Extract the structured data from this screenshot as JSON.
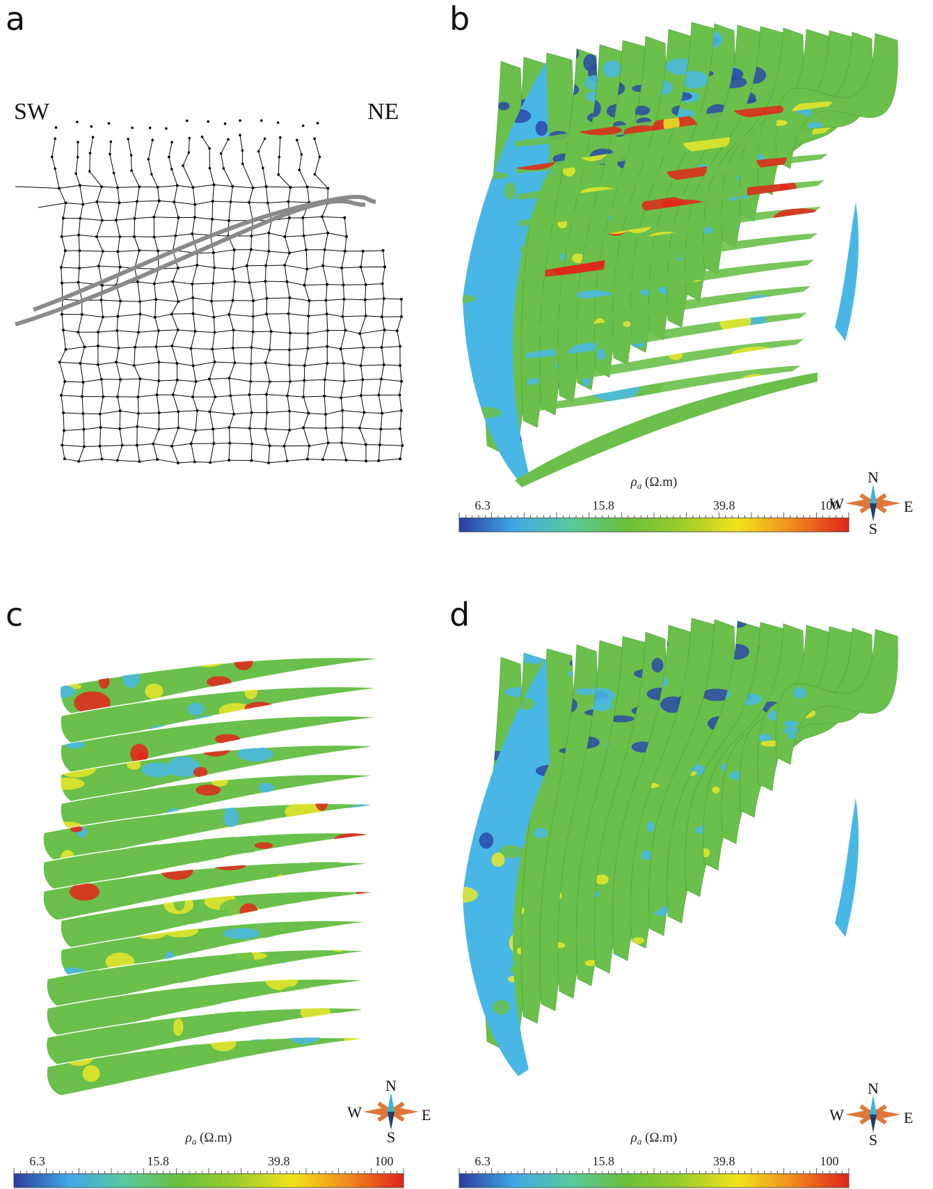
{
  "panels": {
    "a": {
      "letter": "a",
      "left_label": "SW",
      "right_label": "NE"
    },
    "b": {
      "letter": "b"
    },
    "c": {
      "letter": "c"
    },
    "d": {
      "letter": "d"
    }
  },
  "colorbar": {
    "title_symbol": "ρ",
    "title_sub": "a",
    "title_unit": " (Ω.m)",
    "ticks": [
      "6.3",
      "15.8",
      "39.8",
      "100"
    ],
    "colors": [
      "#2b3c9e",
      "#3fa9e6",
      "#58c89a",
      "#6bbf3c",
      "#9ccc2c",
      "#f2e31b",
      "#f08a1c",
      "#e0231c"
    ]
  },
  "compass": {
    "n": "N",
    "s": "S",
    "w": "W",
    "e": "E",
    "needle_north": "#3ab6d8",
    "needle_south": "#1d3f6e",
    "rose": "#e0773a"
  },
  "palette": {
    "blue_dark": "#2a4aa8",
    "blue_light": "#49b7e6",
    "green": "#6ac04a",
    "yellow": "#e8e62a",
    "red": "#e2261a"
  }
}
